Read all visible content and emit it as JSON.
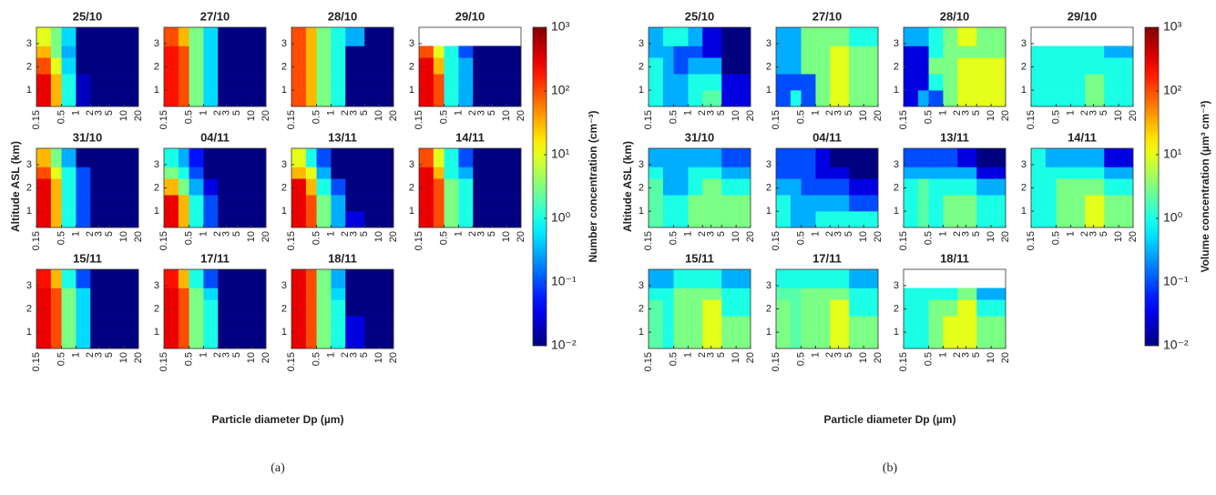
{
  "chart_data": [
    {
      "type": "heatmap",
      "caption": "(a)",
      "x_label": "Particle diameter Dp (µm)",
      "y_label": "Altitude ASL (km)",
      "colorbar_label": "Number concentration (cm⁻³)",
      "colormap": "jet",
      "xscale": "log",
      "color_scale": "log",
      "xlim": [
        0.15,
        20
      ],
      "ylim": [
        0.3,
        3.7
      ],
      "xticks": [
        0.15,
        0.5,
        1,
        2,
        3,
        5,
        10,
        20
      ],
      "yticks": [
        1,
        2,
        3
      ],
      "xbins": [
        0.15,
        0.3,
        0.5,
        1,
        2,
        5,
        20
      ],
      "ybins": [
        0.3,
        1,
        1.7,
        2.4,
        2.9,
        3.7
      ],
      "clim": [
        0.01,
        1000
      ],
      "cticks": [
        {
          "value": 1000,
          "label": "10³"
        },
        {
          "value": 100,
          "label": "10²"
        },
        {
          "value": 10,
          "label": "10¹"
        },
        {
          "value": 1,
          "label": "10⁰"
        },
        {
          "value": 0.1,
          "label": "10⁻¹"
        },
        {
          "value": 0.01,
          "label": "10⁻²"
        }
      ],
      "panels": [
        {
          "title": "25/10",
          "values": [
            [
              300,
              30,
              1,
              0.02,
              0.01,
              0.01
            ],
            [
              300,
              30,
              1,
              0.02,
              0.01,
              0.01
            ],
            [
              100,
              10,
              0.5,
              0.01,
              0.01,
              0.01
            ],
            [
              30,
              3,
              0.3,
              0.01,
              0.01,
              0.01
            ],
            [
              10,
              3,
              0.5,
              0.01,
              0.01,
              0.01
            ]
          ]
        },
        {
          "title": "27/10",
          "values": [
            [
              200,
              100,
              3,
              0.5,
              0.01,
              0.01
            ],
            [
              200,
              100,
              3,
              0.5,
              0.01,
              0.01
            ],
            [
              200,
              100,
              3,
              0.5,
              0.01,
              0.01
            ],
            [
              200,
              100,
              3,
              0.5,
              0.01,
              0.01
            ],
            [
              100,
              30,
              3,
              0.5,
              0.01,
              0.01
            ]
          ]
        },
        {
          "title": "28/10",
          "values": [
            [
              100,
              30,
              3,
              1,
              0.01,
              0.01
            ],
            [
              100,
              30,
              3,
              1,
              0.01,
              0.01
            ],
            [
              100,
              30,
              3,
              1,
              0.01,
              0.01
            ],
            [
              100,
              30,
              3,
              1,
              0.01,
              0.01
            ],
            [
              100,
              30,
              3,
              1,
              0.3,
              0.01
            ]
          ]
        },
        {
          "title": "29/10",
          "values": [
            [
              300,
              100,
              1,
              0.3,
              0.01,
              0.01
            ],
            [
              300,
              100,
              1,
              0.3,
              0.01,
              0.01
            ],
            [
              300,
              30,
              1,
              0.3,
              0.01,
              0.01
            ],
            [
              100,
              10,
              1,
              0.1,
              0.01,
              0.01
            ],
            null
          ]
        },
        {
          "title": "31/10",
          "values": [
            [
              300,
              30,
              1,
              0.1,
              0.01,
              0.01
            ],
            [
              300,
              30,
              1,
              0.1,
              0.01,
              0.01
            ],
            [
              300,
              30,
              1,
              0.1,
              0.01,
              0.01
            ],
            [
              100,
              10,
              1,
              0.1,
              0.01,
              0.01
            ],
            [
              30,
              3,
              0.3,
              0.01,
              0.01,
              0.01
            ]
          ]
        },
        {
          "title": "04/11",
          "values": [
            [
              300,
              30,
              1,
              0.1,
              0.01,
              0.01
            ],
            [
              300,
              30,
              1,
              0.1,
              0.01,
              0.01
            ],
            [
              30,
              3,
              0.3,
              0.03,
              0.01,
              0.01
            ],
            [
              3,
              1,
              0.1,
              0.01,
              0.01,
              0.01
            ],
            [
              1,
              0.3,
              0.05,
              0.01,
              0.01,
              0.01
            ]
          ]
        },
        {
          "title": "13/11",
          "values": [
            [
              300,
              100,
              3,
              0.3,
              0.03,
              0.01
            ],
            [
              300,
              100,
              3,
              0.3,
              0.01,
              0.01
            ],
            [
              300,
              30,
              1,
              0.1,
              0.01,
              0.01
            ],
            [
              30,
              10,
              0.3,
              0.01,
              0.01,
              0.01
            ],
            [
              10,
              1,
              0.1,
              0.01,
              0.01,
              0.01
            ]
          ]
        },
        {
          "title": "14/11",
          "values": [
            [
              300,
              100,
              3,
              1,
              0.01,
              0.01
            ],
            [
              300,
              100,
              3,
              1,
              0.01,
              0.01
            ],
            [
              300,
              100,
              3,
              1,
              0.01,
              0.01
            ],
            [
              300,
              30,
              1,
              0.3,
              0.01,
              0.01
            ],
            [
              100,
              10,
              1,
              0.1,
              0.01,
              0.01
            ]
          ]
        },
        {
          "title": "15/11",
          "values": [
            [
              300,
              100,
              3,
              0.5,
              0.01,
              0.01
            ],
            [
              300,
              100,
              3,
              0.5,
              0.01,
              0.01
            ],
            [
              300,
              100,
              3,
              0.5,
              0.01,
              0.01
            ],
            [
              300,
              100,
              3,
              0.5,
              0.01,
              0.01
            ],
            [
              200,
              30,
              1,
              0.1,
              0.01,
              0.01
            ]
          ]
        },
        {
          "title": "17/11",
          "values": [
            [
              300,
              100,
              3,
              1,
              0.01,
              0.01
            ],
            [
              300,
              100,
              3,
              1,
              0.01,
              0.01
            ],
            [
              300,
              100,
              3,
              1,
              0.01,
              0.01
            ],
            [
              300,
              100,
              3,
              0.5,
              0.01,
              0.01
            ],
            [
              200,
              30,
              1,
              0.1,
              0.01,
              0.01
            ]
          ]
        },
        {
          "title": "18/11",
          "values": [
            [
              300,
              100,
              3,
              1,
              0.03,
              0.01
            ],
            [
              300,
              100,
              3,
              1,
              0.03,
              0.01
            ],
            [
              300,
              100,
              3,
              1,
              0.01,
              0.01
            ],
            [
              300,
              100,
              3,
              0.5,
              0.01,
              0.01
            ],
            [
              300,
              100,
              3,
              0.3,
              0.01,
              0.01
            ]
          ]
        }
      ]
    },
    {
      "type": "heatmap",
      "caption": "(b)",
      "x_label": "Particle diameter Dp (µm)",
      "y_label": "Altitude ASL (km)",
      "colorbar_label": "Volume concentration (µm³ cm⁻³)",
      "colormap": "jet",
      "xscale": "log",
      "color_scale": "log",
      "xlim": [
        0.15,
        20
      ],
      "ylim": [
        0.3,
        3.7
      ],
      "xticks": [
        0.15,
        0.5,
        1,
        2,
        3,
        5,
        10,
        20
      ],
      "yticks": [
        1,
        2,
        3
      ],
      "xbins": [
        0.15,
        0.3,
        0.5,
        1,
        2,
        5,
        20
      ],
      "ybins": [
        0.3,
        1,
        1.7,
        2.4,
        2.9,
        3.7
      ],
      "clim": [
        0.01,
        1000
      ],
      "cticks": [
        {
          "value": 1000,
          "label": "10³"
        },
        {
          "value": 100,
          "label": "10²"
        },
        {
          "value": 10,
          "label": "10¹"
        },
        {
          "value": 1,
          "label": "10⁰"
        },
        {
          "value": 0.1,
          "label": "10⁻¹"
        },
        {
          "value": 0.01,
          "label": "10⁻²"
        }
      ],
      "panels": [
        {
          "title": "25/10",
          "values": [
            [
              1,
              0.3,
              0.3,
              1,
              2,
              0.03
            ],
            [
              1,
              0.3,
              0.3,
              1,
              1,
              0.03
            ],
            [
              1,
              0.3,
              0.1,
              0.3,
              0.3,
              0.01
            ],
            [
              0.3,
              0.3,
              0.1,
              0.1,
              0.03,
              0.01
            ],
            [
              0.3,
              1,
              1,
              0.3,
              0.03,
              0.01
            ]
          ]
        },
        {
          "title": "27/10",
          "values": [
            [
              0.1,
              1,
              0.1,
              3,
              10,
              3
            ],
            [
              0.1,
              0.1,
              0.1,
              3,
              10,
              3
            ],
            [
              0.3,
              0.3,
              3,
              3,
              10,
              3
            ],
            [
              0.3,
              0.3,
              3,
              3,
              10,
              3
            ],
            [
              0.3,
              0.3,
              3,
              3,
              3,
              1
            ]
          ]
        },
        {
          "title": "28/10",
          "values": [
            [
              0.03,
              0.3,
              0.1,
              3,
              10,
              10
            ],
            [
              0.03,
              0.03,
              1,
              3,
              10,
              10
            ],
            [
              0.03,
              0.03,
              3,
              3,
              10,
              10
            ],
            [
              0.03,
              0.03,
              1,
              3,
              3,
              3
            ],
            [
              0.3,
              0.3,
              1,
              3,
              10,
              3
            ]
          ]
        },
        {
          "title": "29/10",
          "values": [
            [
              1,
              1,
              1,
              1,
              3,
              1
            ],
            [
              1,
              1,
              1,
              1,
              3,
              1
            ],
            [
              1,
              1,
              1,
              1,
              1,
              1
            ],
            [
              1,
              1,
              1,
              1,
              1,
              0.3
            ],
            null
          ]
        },
        {
          "title": "31/10",
          "values": [
            [
              2,
              1,
              1,
              3,
              3,
              3
            ],
            [
              2,
              1,
              1,
              3,
              3,
              3
            ],
            [
              2,
              0.3,
              0.3,
              1,
              3,
              1
            ],
            [
              1,
              0.3,
              0.3,
              1,
              1,
              0.3
            ],
            [
              0.3,
              0.3,
              0.3,
              0.3,
              0.3,
              0.1
            ]
          ]
        },
        {
          "title": "04/11",
          "values": [
            [
              1,
              0.3,
              0.3,
              1,
              1,
              1
            ],
            [
              1,
              0.3,
              0.3,
              0.3,
              0.3,
              0.1
            ],
            [
              0.3,
              0.3,
              0.1,
              0.1,
              0.1,
              0.03
            ],
            [
              0.1,
              0.1,
              0.1,
              0.03,
              0.03,
              0.01
            ],
            [
              0.1,
              0.1,
              0.1,
              0.03,
              0.01,
              0.01
            ]
          ]
        },
        {
          "title": "13/11",
          "values": [
            [
              1,
              2,
              1,
              3,
              3,
              1
            ],
            [
              1,
              2,
              1,
              3,
              3,
              1
            ],
            [
              1,
              2,
              1,
              1,
              1,
              0.3
            ],
            [
              0.3,
              0.3,
              0.3,
              0.3,
              0.3,
              0.03
            ],
            [
              0.1,
              0.1,
              0.1,
              0.1,
              0.03,
              0.01
            ]
          ]
        },
        {
          "title": "14/11",
          "values": [
            [
              1,
              1,
              3,
              3,
              10,
              3
            ],
            [
              1,
              1,
              3,
              3,
              10,
              3
            ],
            [
              1,
              1,
              3,
              3,
              3,
              1
            ],
            [
              1,
              1,
              1,
              1,
              1,
              0.3
            ],
            [
              1,
              0.3,
              0.3,
              0.3,
              0.3,
              0.03
            ]
          ]
        },
        {
          "title": "15/11",
          "values": [
            [
              2,
              1,
              3,
              3,
              10,
              3
            ],
            [
              2,
              1,
              3,
              3,
              10,
              3
            ],
            [
              2,
              1,
              3,
              3,
              10,
              1
            ],
            [
              1,
              1,
              3,
              3,
              3,
              1
            ],
            [
              0.3,
              0.3,
              1,
              1,
              1,
              0.3
            ]
          ]
        },
        {
          "title": "17/11",
          "values": [
            [
              3,
              2,
              3,
              3,
              10,
              3
            ],
            [
              3,
              2,
              3,
              3,
              10,
              3
            ],
            [
              3,
              2,
              3,
              3,
              10,
              1
            ],
            [
              2,
              2,
              3,
              3,
              3,
              1
            ],
            [
              1,
              1,
              1,
              1,
              1,
              0.3
            ]
          ]
        },
        {
          "title": "18/11",
          "values": [
            [
              1,
              1,
              3,
              10,
              10,
              3
            ],
            [
              1,
              1,
              3,
              10,
              10,
              3
            ],
            [
              1,
              1,
              3,
              3,
              10,
              1
            ],
            [
              1,
              1,
              1,
              1,
              3,
              0.3
            ],
            null
          ]
        }
      ]
    }
  ]
}
